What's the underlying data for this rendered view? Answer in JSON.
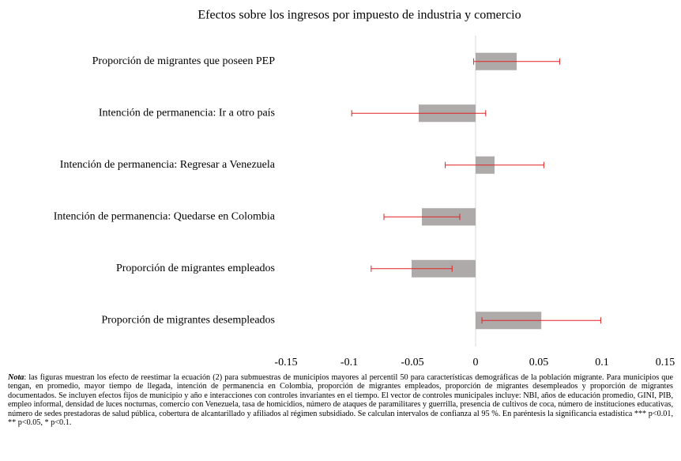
{
  "chart_data": {
    "type": "hbar_error",
    "title": "Efectos sobre los ingresos por impuesto de industria y comercio",
    "categories": [
      "Proporción de migrantes que poseen PEP",
      "Intención de permanencia: Ir a otro país",
      "Intención de permanencia: Regresar a Venezuela",
      "Intención de permanencia: Quedarse en Colombia",
      "Proporción de migrantes empleados",
      "Proporción de migrantes  desempleados"
    ],
    "values": [
      0.0325,
      -0.045,
      0.015,
      -0.0425,
      -0.0506,
      0.052
    ],
    "errors": [
      0.034,
      0.053,
      0.039,
      0.03,
      0.032,
      0.047
    ],
    "color": "#aeaaaa",
    "error_color": "#e02020",
    "xlim": [
      -0.15,
      0.15
    ],
    "xticks": [
      -0.15,
      -0.1,
      -0.05,
      0,
      0.05,
      0.1,
      0.15
    ]
  },
  "note": {
    "label": "Nota",
    "text": ": las figuras muestran los efecto de reestimar la ecuación (2) para submuestras de municipios mayores al percentil 50 para características demográficas de la población migrante. Para municipios que tengan, en promedio, mayor tiempo de llegada, intención de permanencia en Colombia, proporción de migrantes empleados, proporción de migrantes desempleados y proporción de migrantes documentados. Se incluyen efectos fijos de municipio y año e interacciones con controles invariantes en el tiempo. El vector de controles municipales incluye: NBI,  años de educación promedio, GINI, PIB, empleo informal, densidad de luces nocturnas, comercio con Venezuela, tasa de homicidios, número de ataques de paramilitares y guerrilla, presencia de cultivos de coca, número de instituciones educativas,  número de sedes prestadoras de salud pública, cobertura de alcantarillado y afiliados al régimen subsidiado. Se calculan intervalos de confianza al 95 %. En paréntesis la significancia estadística *** p<0.01, ** p<0.05, * p<0.1."
  }
}
